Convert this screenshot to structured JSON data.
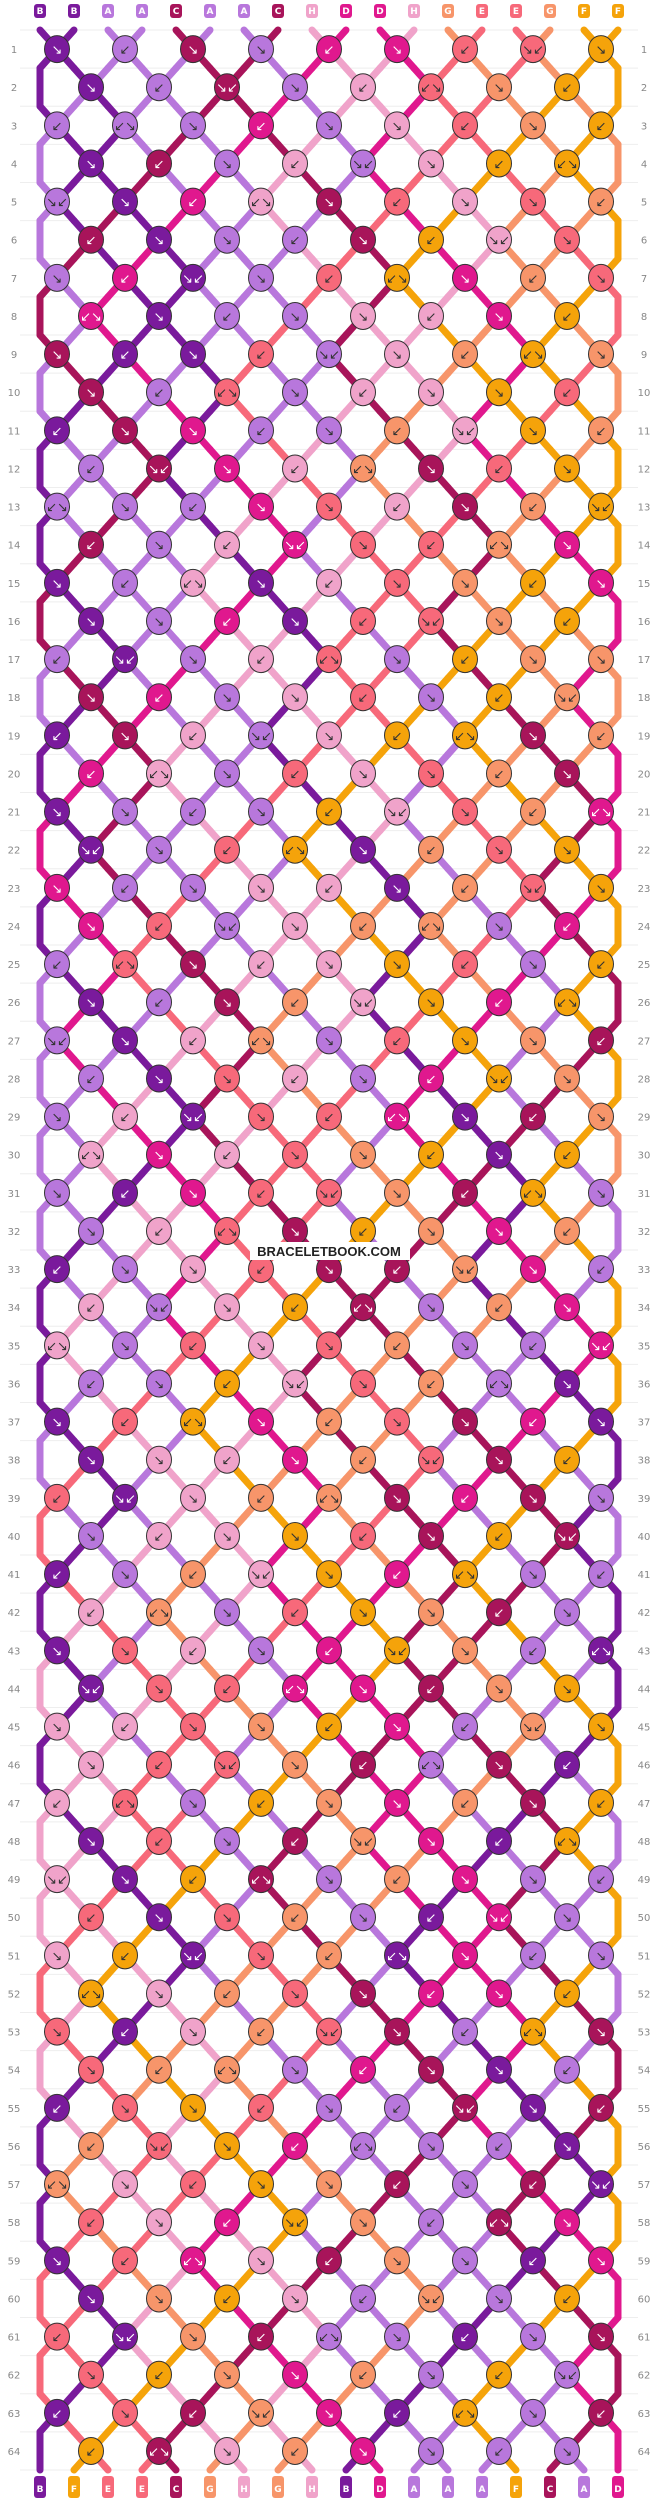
{
  "watermark": "BRACELETBOOK.COM",
  "rows": 64,
  "strings": [
    "B",
    "B",
    "A",
    "A",
    "C",
    "A",
    "A",
    "C",
    "H",
    "D",
    "D",
    "H",
    "G",
    "E",
    "E",
    "G",
    "F",
    "F"
  ],
  "colors": {
    "A": "#b877dc",
    "B": "#7a1a9c",
    "C": "#a8145a",
    "D": "#e0188e",
    "E": "#f7697a",
    "F": "#f5a30a",
    "G": "#f7956a",
    "H": "#f0a3ca"
  },
  "knot_symbols": {
    "forward": "↘",
    "backward": "↙",
    "forward_backward": "↘↙",
    "backward_forward": "↙↘"
  },
  "row_labels_left": true,
  "row_labels_right": true
}
